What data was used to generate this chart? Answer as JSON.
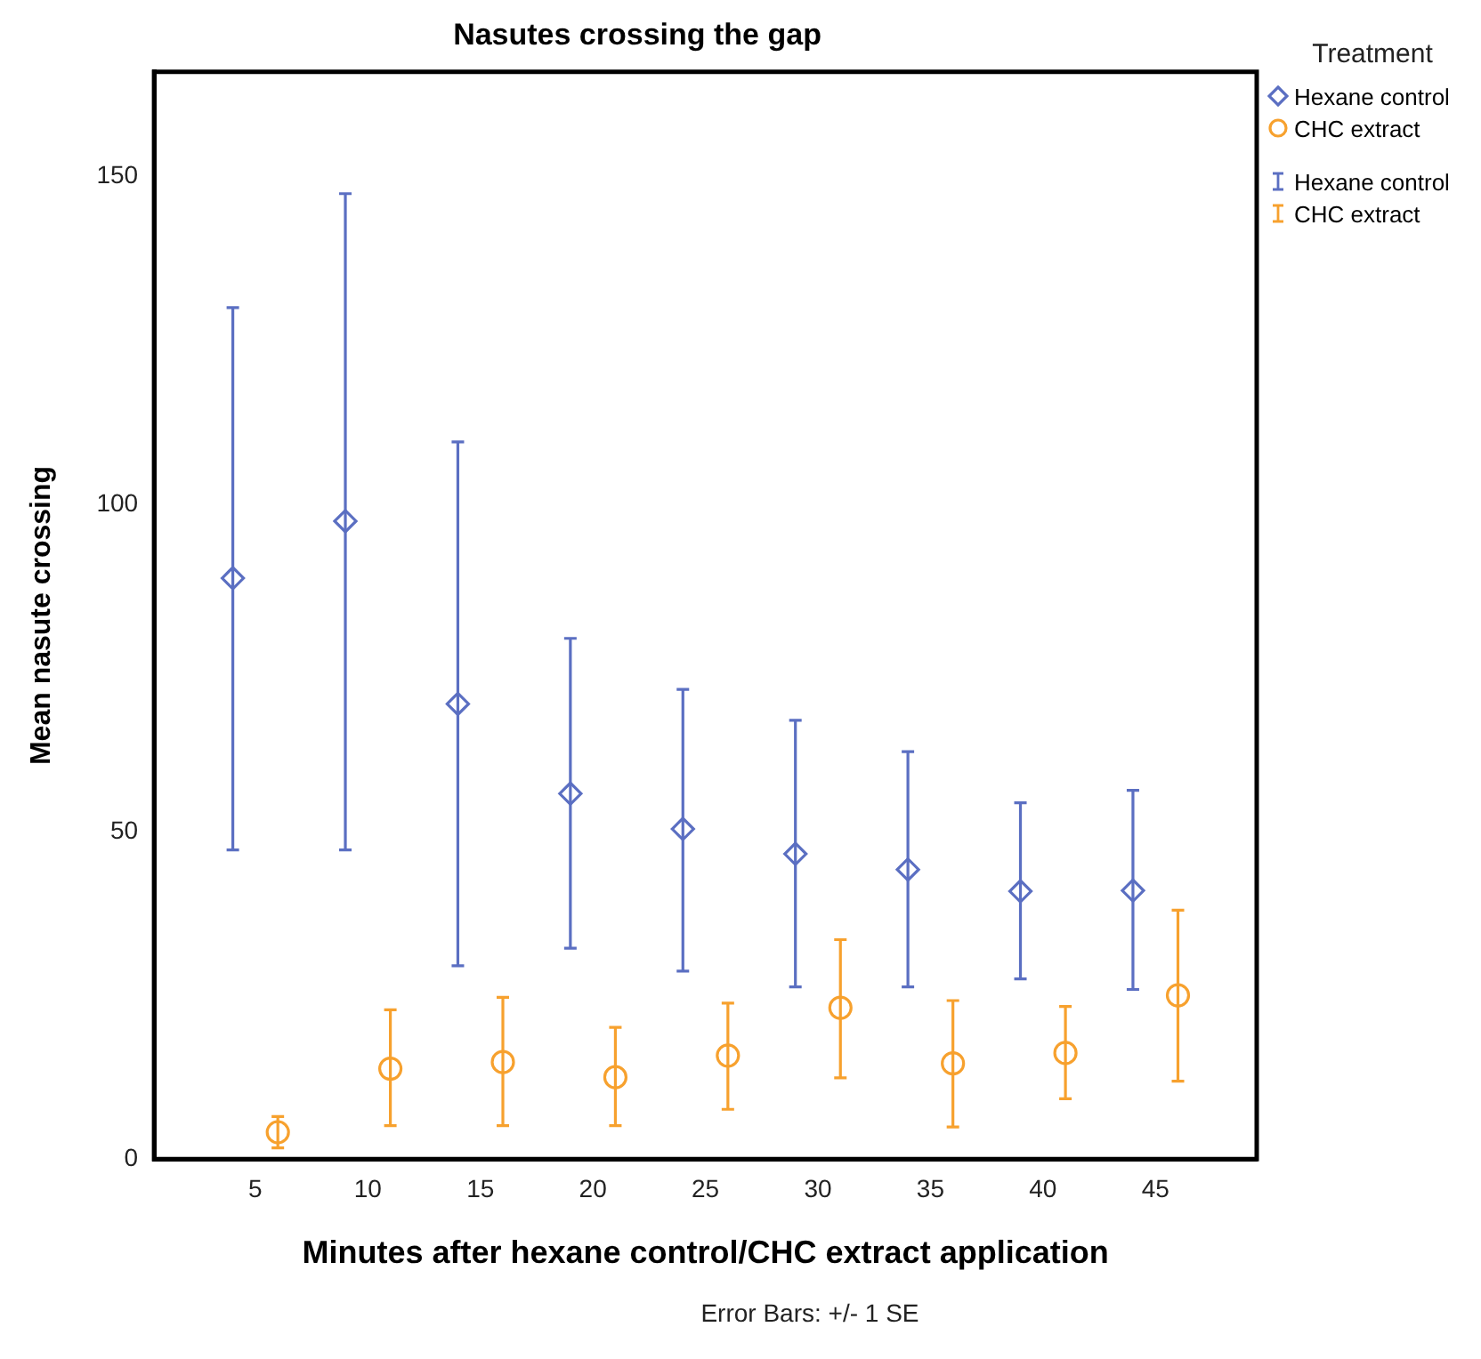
{
  "chart_data": {
    "type": "scatter",
    "title": "Nasutes crossing the gap",
    "xlabel": "Minutes after hexane control/CHC extract application",
    "ylabel": "Mean nasute crossing",
    "legend_title": "Treatment",
    "legend": "top right",
    "grid": false,
    "xlim": [
      0.5,
      49.5
    ],
    "xticks": [
      5,
      10,
      15,
      20,
      25,
      30,
      35,
      40,
      45
    ],
    "ylim": [
      0,
      166
    ],
    "yticks": [
      0,
      50,
      100,
      150
    ],
    "annotations": [
      "Error Bars: +/- 1 SE"
    ],
    "series": [
      {
        "name": "Hexane control",
        "color": "#5b6fc2",
        "marker": "diamond",
        "x": [
          4,
          9,
          14,
          19,
          24,
          29,
          34,
          39,
          44
        ],
        "values": [
          88.7,
          97.4,
          69.5,
          55.8,
          50.4,
          46.6,
          44.2,
          40.9,
          41.0
        ],
        "errors": [
          [
            47.2,
            130.0
          ],
          [
            47.2,
            147.4
          ],
          [
            29.5,
            109.5
          ],
          [
            32.2,
            79.5
          ],
          [
            28.7,
            71.7
          ],
          [
            26.3,
            67.0
          ],
          [
            26.3,
            62.2
          ],
          [
            27.5,
            54.4
          ],
          [
            25.9,
            56.3
          ]
        ]
      },
      {
        "name": "CHC extract",
        "color": "#f7a12e",
        "marker": "circle",
        "x": [
          6,
          11,
          16,
          21,
          26,
          31,
          36,
          41,
          46
        ],
        "values": [
          4.1,
          13.8,
          14.8,
          12.5,
          15.8,
          23.1,
          14.6,
          16.2,
          25.0
        ],
        "errors": [
          [
            1.7,
            6.5
          ],
          [
            5.1,
            22.8
          ],
          [
            5.1,
            24.7
          ],
          [
            5.1,
            20.1
          ],
          [
            7.6,
            23.8
          ],
          [
            12.4,
            33.5
          ],
          [
            4.9,
            24.2
          ],
          [
            9.2,
            23.3
          ],
          [
            11.9,
            38.0
          ]
        ]
      }
    ]
  }
}
